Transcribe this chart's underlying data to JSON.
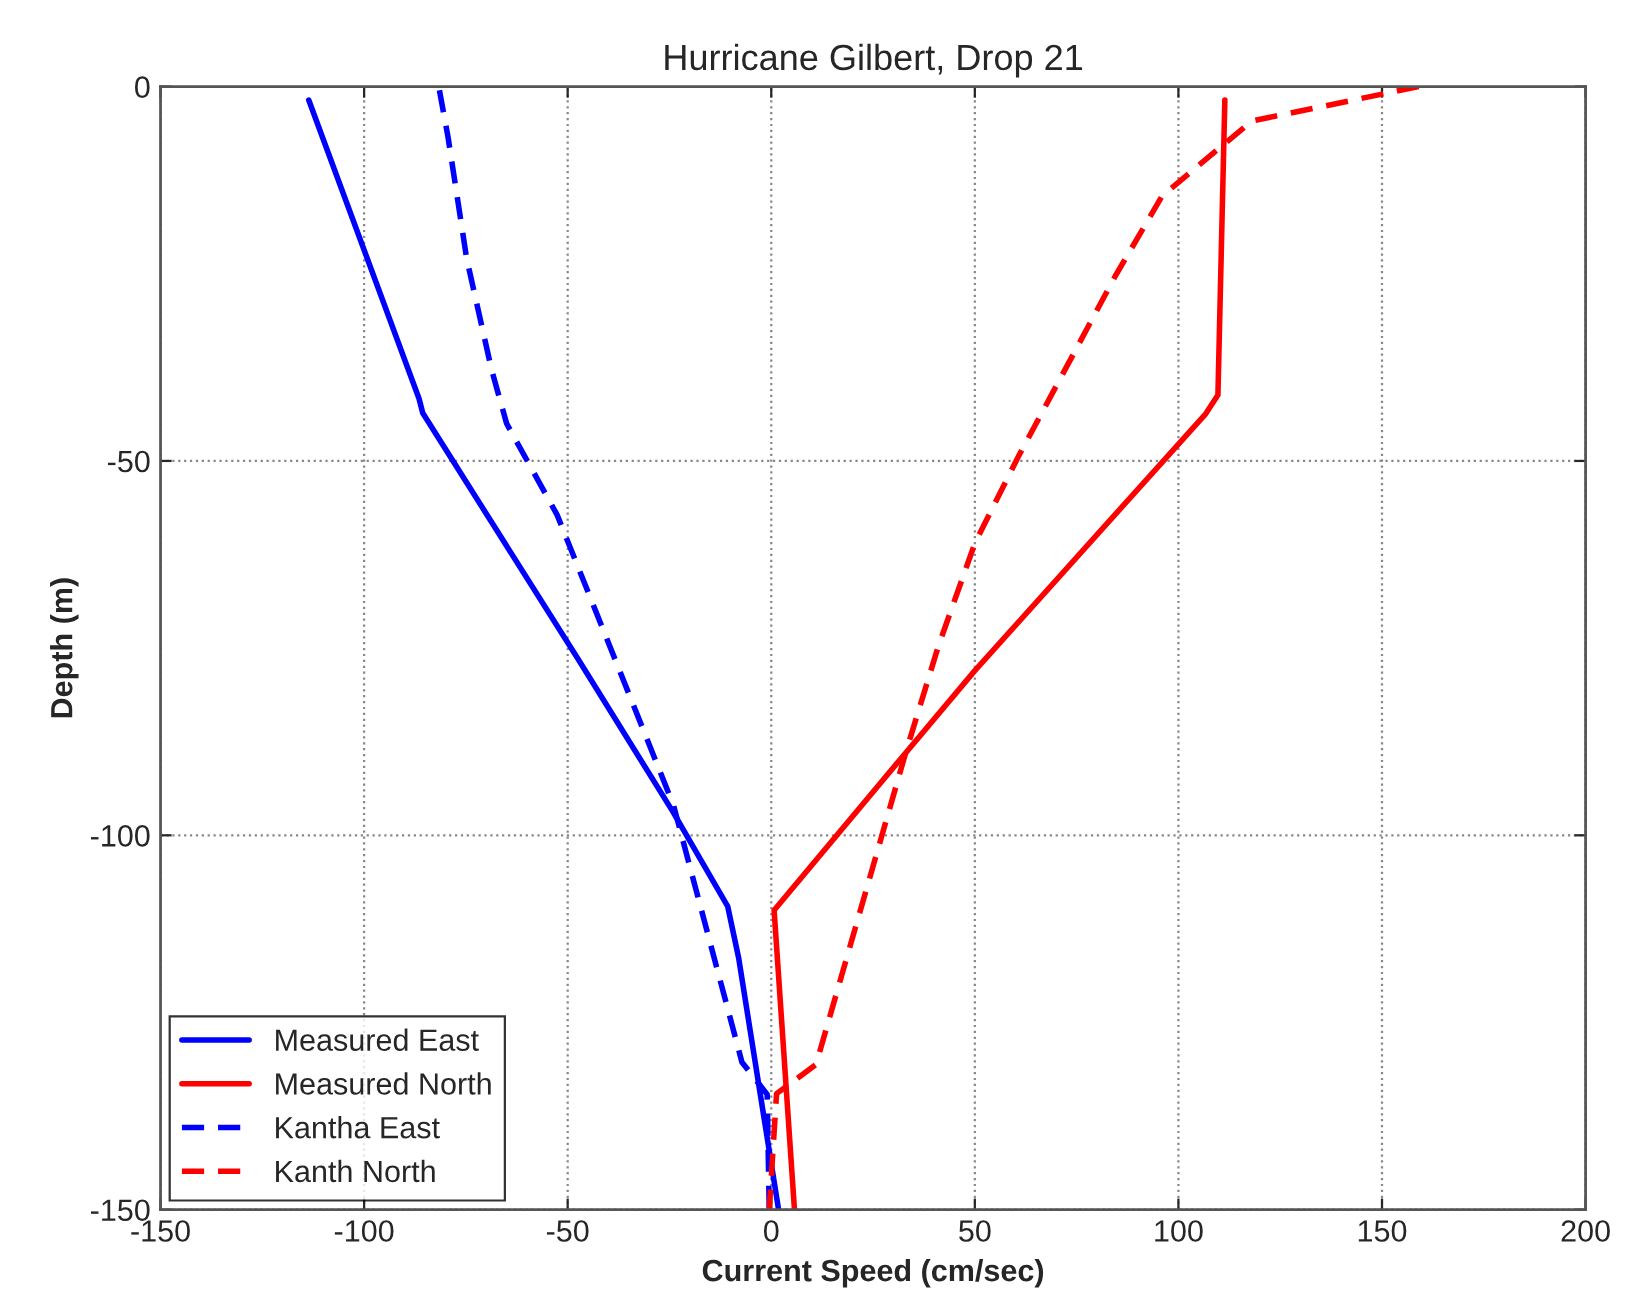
{
  "chart_data": {
    "type": "line",
    "title": "Hurricane Gilbert, Drop 21",
    "xlabel": "Current Speed (cm/sec)",
    "ylabel": "Depth (m)",
    "xlim": [
      -150,
      200
    ],
    "xticks": [
      -150,
      -100,
      -50,
      0,
      50,
      100,
      150,
      200
    ],
    "ylim": [
      -150,
      0
    ],
    "yticks": [
      -150,
      -100,
      -50,
      0
    ],
    "grid": true,
    "legend": "bottom left",
    "series": [
      {
        "name": "Measured East",
        "color": "#0000ff",
        "line_style": "solid",
        "x": [
          -113.6,
          -86.5,
          -85.6,
          -47.3,
          -24.1,
          -10.7,
          -8,
          1.8
        ],
        "values": [
          -1.8,
          -41.7,
          -43.6,
          -76.6,
          -96.9,
          -109.5,
          -116.4,
          -150
        ]
      },
      {
        "name": "Measured North",
        "color": "#ff0000",
        "line_style": "solid",
        "x": [
          111.4,
          109.7,
          106.7,
          50,
          33,
          0.7,
          5.7
        ],
        "values": [
          -1.8,
          -41.2,
          -43.7,
          -78,
          -89,
          -110,
          -150
        ]
      },
      {
        "name": "Kantha East",
        "color": "#0000ff",
        "line_style": "dashed",
        "x": [
          -81.5,
          -79.4,
          -74.8,
          -68.7,
          -65,
          -52.6,
          -41.9,
          -24,
          -7.2,
          -1,
          -0.5
        ],
        "values": [
          -0.5,
          -6.7,
          -23,
          -37.8,
          -45,
          -57.2,
          -71.7,
          -96,
          -130.3,
          -134.6,
          -150
        ]
      },
      {
        "name": "Kanth North",
        "color": "#ff0000",
        "line_style": "dashed",
        "x": [
          159,
          118,
          96,
          84.5,
          60.6,
          50,
          41,
          33,
          11,
          1.3,
          -0.5
        ],
        "values": [
          0,
          -4.6,
          -14.6,
          -25.3,
          -49.5,
          -61,
          -74.8,
          -89,
          -130.6,
          -134.5,
          -150
        ]
      }
    ]
  }
}
